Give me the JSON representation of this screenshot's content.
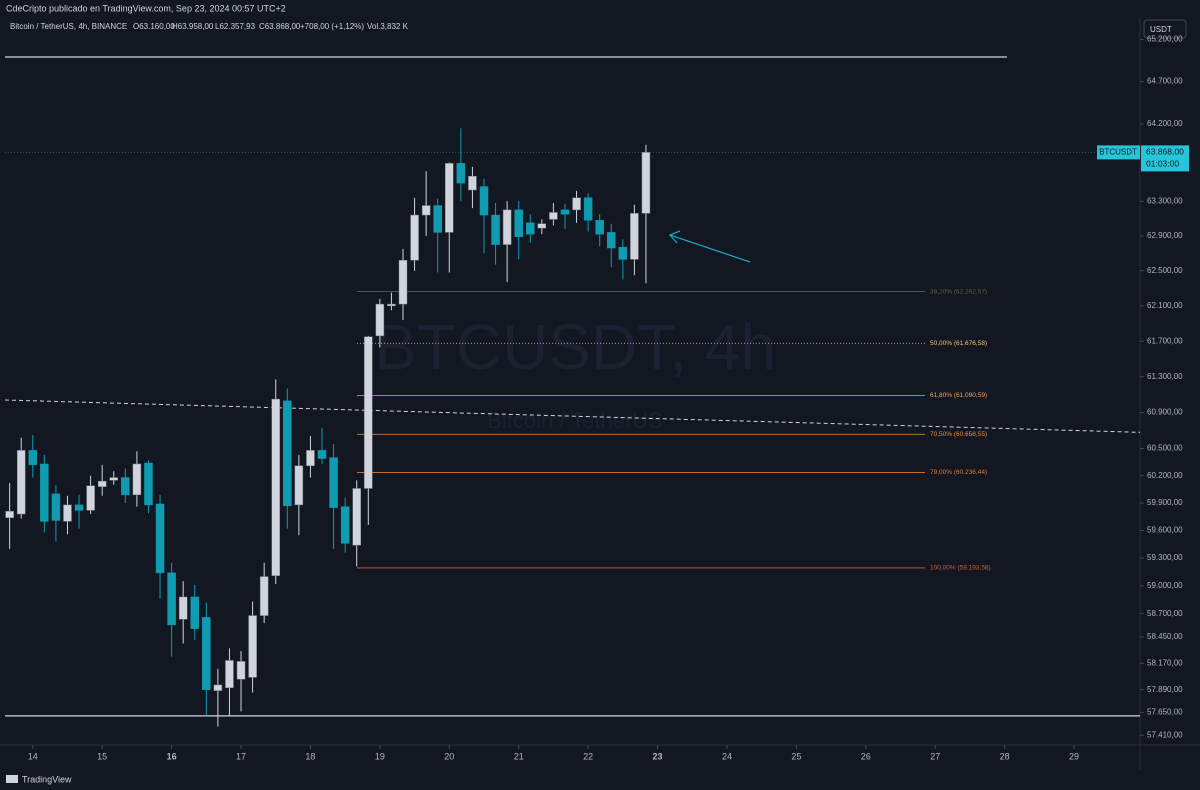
{
  "chart_data": {
    "type": "candlestick",
    "publisher": "CdeCripto publicado en TradingView.com, Sep 23, 2024 00:57 UTC+2",
    "header": {
      "title": "Bitcoin / TetherUS, 4h, BINANCE",
      "open": "O63.160,00",
      "high": "H63.958,00",
      "low": "L62.357,93",
      "close": "C63.868,00",
      "change": "+708,00 (+1,12%)",
      "volume": "Vol.3,832 K"
    },
    "currency": "USDT",
    "watermark": "BTCUSDT, 4h",
    "watermark_subtitle": "Bitcoin / TetherUS",
    "symbol": "BTCUSDT",
    "last_price": {
      "value": 63868,
      "label": "63.868,00"
    },
    "countdown": "01:03:00",
    "footer": "TradingView",
    "log_scale": true,
    "up_color": "#d1d4dc",
    "down_color": "#0f9bb0",
    "x": [
      13.6667,
      13.8333,
      14,
      14.1667,
      14.3333,
      14.5,
      14.6667,
      14.8333,
      15,
      15.1667,
      15.3333,
      15.5,
      15.6667,
      15.8333,
      16,
      16.1667,
      16.3333,
      16.5,
      16.6667,
      16.8333,
      17,
      17.1667,
      17.3333,
      17.5,
      17.6667,
      17.8333,
      18,
      18.1667,
      18.3333,
      18.5,
      18.6667,
      18.8333,
      19,
      19.1667,
      19.3333,
      19.5,
      19.6667,
      19.8333,
      20,
      20.1667,
      20.3333,
      20.5,
      20.6667,
      20.8333,
      21,
      21.1667,
      21.3333,
      21.5,
      21.6667,
      21.8333,
      22,
      22.1667,
      22.3333,
      22.5,
      22.6667,
      22.8333
    ],
    "open": [
      59740,
      59780,
      60480,
      60330,
      60000,
      59700,
      59880,
      59820,
      60080,
      60150,
      60180,
      59990,
      60340,
      59890,
      59140,
      58640,
      58880,
      58660,
      57880,
      57910,
      58000,
      58020,
      58680,
      59110,
      61030,
      59880,
      60310,
      60480,
      60400,
      59860,
      59440,
      60060,
      61760,
      62100,
      62120,
      62620,
      63140,
      63250,
      62940,
      63740,
      63430,
      63470,
      63140,
      62800,
      63200,
      63050,
      62990,
      63090,
      63200,
      63200,
      63340,
      63080,
      62940,
      62770,
      62630,
      63160
    ],
    "high": [
      60120,
      60620,
      60650,
      60430,
      60100,
      59980,
      59990,
      60200,
      60320,
      60250,
      60280,
      60470,
      60370,
      59990,
      59250,
      59050,
      59010,
      58820,
      58110,
      58330,
      58300,
      58830,
      59250,
      61270,
      61170,
      60430,
      60640,
      60730,
      60550,
      59960,
      60150,
      61760,
      62180,
      62250,
      62750,
      63340,
      63650,
      63330,
      63750,
      64150,
      63700,
      63560,
      63280,
      63300,
      63300,
      63150,
      63090,
      63280,
      63270,
      63420,
      63390,
      63150,
      63040,
      62860,
      63260,
      63958
    ],
    "low": [
      59400,
      59730,
      60180,
      59580,
      59480,
      59560,
      59620,
      59780,
      59980,
      60100,
      59900,
      59860,
      59790,
      58860,
      58240,
      58380,
      58420,
      57620,
      57500,
      57620,
      57660,
      57860,
      58600,
      59020,
      59620,
      59550,
      60180,
      60330,
      59400,
      59360,
      59210,
      59660,
      61630,
      62050,
      61940,
      62500,
      62900,
      62480,
      62480,
      63300,
      63220,
      62700,
      62570,
      62370,
      62630,
      62820,
      62920,
      63020,
      62980,
      63050,
      62950,
      62780,
      62540,
      62400,
      62450,
      62357.93
    ],
    "close": [
      59810,
      60480,
      60320,
      59700,
      59710,
      59880,
      59820,
      60090,
      60140,
      60180,
      59990,
      60330,
      59880,
      59140,
      58580,
      58880,
      58540,
      57890,
      57940,
      58200,
      58190,
      58680,
      59100,
      61050,
      59870,
      60310,
      60480,
      60390,
      59850,
      59460,
      60060,
      61750,
      62120,
      62120,
      62620,
      63140,
      63250,
      62940,
      63740,
      63510,
      63590,
      63140,
      62800,
      63200,
      62890,
      62920,
      63040,
      63170,
      63150,
      63340,
      63080,
      62920,
      62760,
      62630,
      63160,
      63868
    ],
    "xlim": [
      13.6,
      29.95
    ],
    "ylim": [
      57307,
      65314
    ],
    "xticks": [
      14,
      15,
      16,
      17,
      18,
      19,
      20,
      21,
      22,
      23,
      24,
      25,
      26,
      27,
      28,
      29
    ],
    "xticks_bold": [
      16,
      23
    ],
    "yticks": [
      {
        "value": 65200,
        "label": "65.200,00"
      },
      {
        "value": 64700,
        "label": "64.700,00"
      },
      {
        "value": 64200,
        "label": "64.200,00"
      },
      {
        "value": 63300,
        "label": "63.300,00"
      },
      {
        "value": 62900,
        "label": "62.900,00"
      },
      {
        "value": 62500,
        "label": "62.500,00"
      },
      {
        "value": 62100,
        "label": "62.100,00"
      },
      {
        "value": 61700,
        "label": "61.700,00"
      },
      {
        "value": 61300,
        "label": "61.300,00"
      },
      {
        "value": 60900,
        "label": "60.900,00"
      },
      {
        "value": 60500,
        "label": "60.500,00"
      },
      {
        "value": 60200,
        "label": "60.200,00"
      },
      {
        "value": 59900,
        "label": "59.900,00"
      },
      {
        "value": 59600,
        "label": "59.600,00"
      },
      {
        "value": 59300,
        "label": "59.300,00"
      },
      {
        "value": 59000,
        "label": "59.000,00"
      },
      {
        "value": 58700,
        "label": "58.700,00"
      },
      {
        "value": 58450,
        "label": "58.450,00"
      },
      {
        "value": 58170,
        "label": "58.170,00"
      },
      {
        "value": 57890,
        "label": "57.890,00"
      },
      {
        "value": 57650,
        "label": "57.650,00"
      },
      {
        "value": 57410,
        "label": "57.410,00"
      }
    ],
    "levels": [
      64992,
      57613
    ],
    "trend_line": [
      61040,
      60680
    ],
    "fib_levels": [
      {
        "value": 62262.57,
        "label": "38,20% (62.262,57)",
        "color": "#5f5b44"
      },
      {
        "value": 61676.58,
        "label": "50,00% (61.676,58)",
        "color": "#e8c77a"
      },
      {
        "value": 61090.59,
        "label": "61,80% (61.090,59)",
        "color": "#e5a95a"
      },
      {
        "value": 60658.55,
        "label": "70,50% (60.658,55)",
        "color": "#e8903f"
      },
      {
        "value": 60236.44,
        "label": "79,00% (60.236,44)",
        "color": "#e27a34"
      },
      {
        "value": 59193.58,
        "label": "100,00% (59.193,58)",
        "color": "#c8603a"
      }
    ]
  }
}
